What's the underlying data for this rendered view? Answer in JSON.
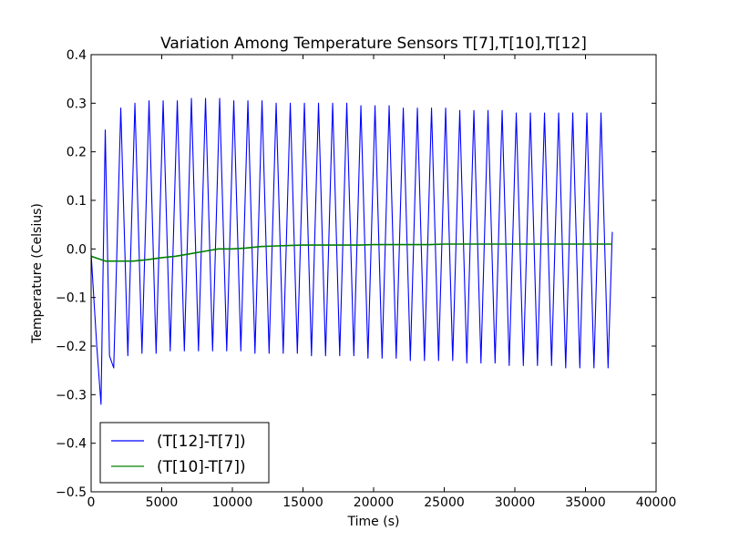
{
  "chart_data": {
    "type": "line",
    "title": "Variation Among Temperature Sensors T[7],T[10],T[12]",
    "xlabel": "Time (s)",
    "ylabel": "Temperature (Celsius)",
    "xlim": [
      0,
      40000
    ],
    "ylim": [
      -0.5,
      0.4
    ],
    "xticks": [
      0,
      5000,
      10000,
      15000,
      20000,
      25000,
      30000,
      35000,
      40000
    ],
    "xtick_labels": [
      "0",
      "5000",
      "10000",
      "15000",
      "20000",
      "25000",
      "30000",
      "35000",
      "40000"
    ],
    "yticks": [
      -0.5,
      -0.4,
      -0.3,
      -0.2,
      -0.1,
      0.0,
      0.1,
      0.2,
      0.3,
      0.4
    ],
    "ytick_labels": [
      "−0.5",
      "−0.4",
      "−0.3",
      "−0.2",
      "−0.1",
      "0.0",
      "0.1",
      "0.2",
      "0.3",
      "0.4"
    ],
    "grid": false,
    "legend_position": "lower-left",
    "series": [
      {
        "name": "(T[12]-T[7])",
        "color": "#0000ff",
        "x": [
          0,
          400,
          700,
          1000,
          1300,
          1600,
          2100,
          2600,
          3100,
          3600,
          4100,
          4600,
          5100,
          5600,
          6100,
          6600,
          7100,
          7600,
          8100,
          8600,
          9100,
          9600,
          10100,
          10600,
          11100,
          11600,
          12100,
          12600,
          13100,
          13600,
          14100,
          14600,
          15100,
          15600,
          16100,
          16600,
          17100,
          17600,
          18100,
          18600,
          19100,
          19600,
          20100,
          20600,
          21100,
          21600,
          22100,
          22600,
          23100,
          23600,
          24100,
          24600,
          25100,
          25600,
          26100,
          26600,
          27100,
          27600,
          28100,
          28600,
          29100,
          29600,
          30100,
          30600,
          31100,
          31600,
          32100,
          32600,
          33100,
          33600,
          34100,
          34600,
          35100,
          35600,
          36100,
          36600,
          36900
        ],
        "y": [
          -0.01,
          -0.2,
          -0.32,
          0.245,
          -0.22,
          -0.245,
          0.29,
          -0.22,
          0.3,
          -0.215,
          0.305,
          -0.215,
          0.305,
          -0.21,
          0.305,
          -0.21,
          0.31,
          -0.21,
          0.31,
          -0.21,
          0.31,
          -0.21,
          0.305,
          -0.21,
          0.305,
          -0.215,
          0.305,
          -0.215,
          0.3,
          -0.215,
          0.3,
          -0.215,
          0.3,
          -0.22,
          0.3,
          -0.22,
          0.3,
          -0.22,
          0.3,
          -0.22,
          0.295,
          -0.225,
          0.295,
          -0.225,
          0.295,
          -0.225,
          0.29,
          -0.23,
          0.29,
          -0.23,
          0.29,
          -0.23,
          0.29,
          -0.23,
          0.285,
          -0.235,
          0.285,
          -0.235,
          0.285,
          -0.235,
          0.285,
          -0.24,
          0.28,
          -0.24,
          0.28,
          -0.24,
          0.28,
          -0.24,
          0.28,
          -0.245,
          0.28,
          -0.245,
          0.28,
          -0.245,
          0.28,
          -0.245,
          0.035
        ]
      },
      {
        "name": "(T[10]-T[7])",
        "color": "#008000",
        "x": [
          0,
          1000,
          2000,
          3000,
          4000,
          5000,
          6000,
          7000,
          8000,
          9000,
          10000,
          11000,
          12000,
          13000,
          14000,
          15000,
          16000,
          17000,
          18000,
          19000,
          20000,
          21000,
          22000,
          23000,
          24000,
          25000,
          26000,
          27000,
          28000,
          29000,
          30000,
          31000,
          32000,
          33000,
          34000,
          35000,
          36000,
          36900
        ],
        "y": [
          -0.015,
          -0.025,
          -0.025,
          -0.025,
          -0.022,
          -0.018,
          -0.015,
          -0.01,
          -0.005,
          0.0,
          0.0,
          0.002,
          0.005,
          0.006,
          0.007,
          0.008,
          0.008,
          0.008,
          0.008,
          0.008,
          0.009,
          0.009,
          0.009,
          0.009,
          0.009,
          0.01,
          0.01,
          0.01,
          0.01,
          0.01,
          0.01,
          0.01,
          0.01,
          0.01,
          0.01,
          0.01,
          0.01,
          0.01
        ]
      }
    ]
  }
}
